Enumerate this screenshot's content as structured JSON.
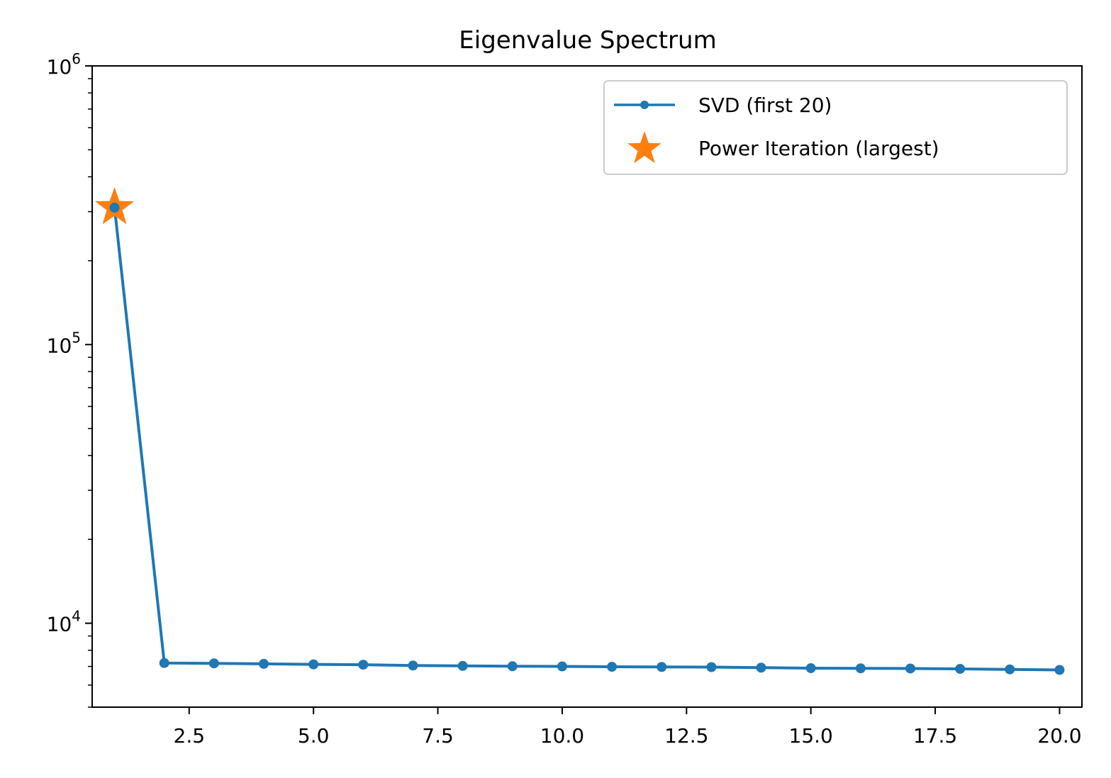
{
  "chart_data": {
    "type": "line",
    "title": "Eigenvalue Spectrum",
    "xlabel": "",
    "ylabel": "",
    "yscale": "log",
    "xlim": [
      0.55,
      20.45
    ],
    "ylim": [
      5000,
      1000000
    ],
    "x_ticks": [
      2.5,
      5.0,
      7.5,
      10.0,
      12.5,
      15.0,
      17.5,
      20.0
    ],
    "x_tick_labels": [
      "2.5",
      "5.0",
      "7.5",
      "10.0",
      "12.5",
      "15.0",
      "17.5",
      "20.0"
    ],
    "y_major_ticks": [
      {
        "value": 10000,
        "base": "10",
        "exp": "4"
      },
      {
        "value": 100000,
        "base": "10",
        "exp": "5"
      },
      {
        "value": 1000000,
        "base": "10",
        "exp": "6"
      }
    ],
    "legend_position": "upper right",
    "series": [
      {
        "name": "SVD (first 20)",
        "kind": "line-with-markers",
        "color": "#1f77b4",
        "x": [
          1,
          2,
          3,
          4,
          5,
          6,
          7,
          8,
          9,
          10,
          11,
          12,
          13,
          14,
          15,
          16,
          17,
          18,
          19,
          20
        ],
        "y": [
          310000,
          7200,
          7180,
          7150,
          7120,
          7100,
          7050,
          7030,
          7010,
          7000,
          6980,
          6970,
          6960,
          6930,
          6900,
          6890,
          6880,
          6860,
          6830,
          6800
        ]
      },
      {
        "name": "Power Iteration (largest)",
        "kind": "star-marker",
        "color": "#ff7f0e",
        "x": [
          1
        ],
        "y": [
          310000
        ]
      }
    ]
  }
}
